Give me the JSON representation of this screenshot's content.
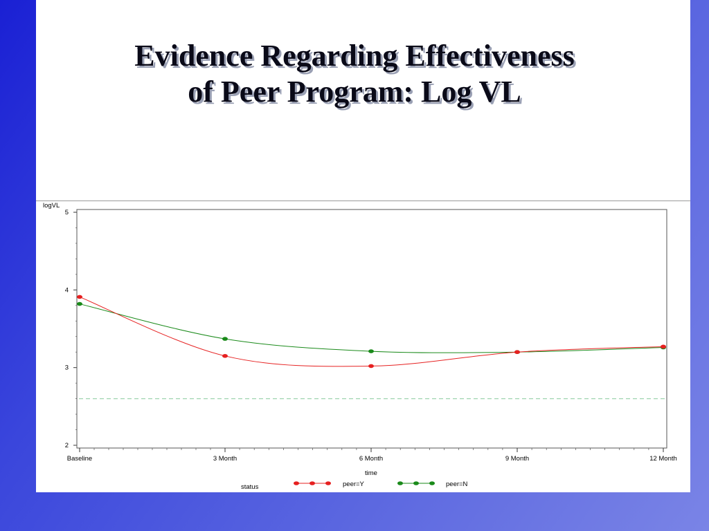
{
  "slide": {
    "title_line1": "Evidence Regarding Effectiveness",
    "title_line2": "of Peer Program: Log VL"
  },
  "chart_data": {
    "type": "line",
    "title": "",
    "xlabel": "time",
    "ylabel": "logVL",
    "categories": [
      "Baseline",
      "3  Month",
      "6  Month",
      "9  Month",
      "12  Month"
    ],
    "ylim": [
      2,
      5
    ],
    "yticks": [
      "2",
      "3",
      "4",
      "5"
    ],
    "reference_line": {
      "y": 2.6,
      "style": "dashed",
      "color": "#9fd4b0"
    },
    "series": [
      {
        "name": "peer=Y",
        "color": "#e62020",
        "values": [
          3.91,
          3.15,
          3.02,
          3.2,
          3.27
        ]
      },
      {
        "name": "peer=N",
        "color": "#1a8a1a",
        "values": [
          3.82,
          3.37,
          3.21,
          3.2,
          3.26
        ]
      }
    ],
    "legend": {
      "title": "status",
      "position": "bottom"
    },
    "grid": false
  }
}
